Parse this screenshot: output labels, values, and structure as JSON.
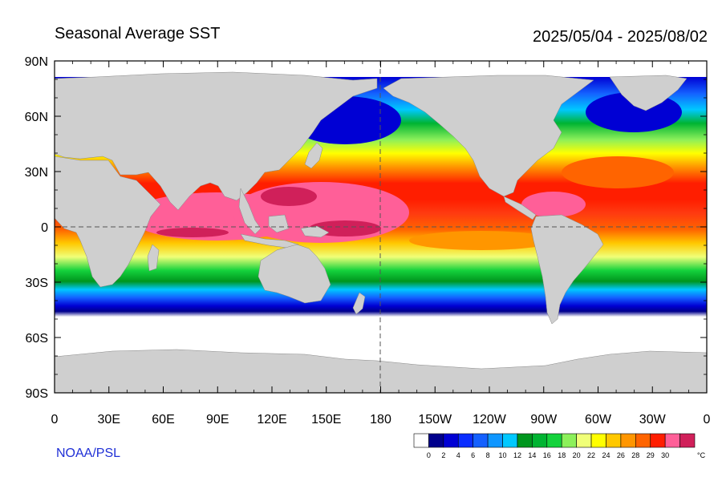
{
  "header": {
    "title": "Seasonal Average SST",
    "date_range": "2025/05/04 - 2025/08/02"
  },
  "credit": "NOAA/PSL",
  "map": {
    "projection": "cylindrical-equidistant",
    "lat_ticks": [
      "90N",
      "60N",
      "30N",
      "0",
      "30S",
      "60S",
      "90S"
    ],
    "lon_ticks": [
      "0",
      "30E",
      "60E",
      "90E",
      "120E",
      "150E",
      "180",
      "150W",
      "120W",
      "90W",
      "60W",
      "30W",
      "0"
    ],
    "land_color": "#cfcfcf",
    "reference_lines": [
      "equator-dashed",
      "dateline-dashed"
    ]
  },
  "legend": {
    "unit": "°C",
    "levels": [
      "0",
      "2",
      "4",
      "6",
      "8",
      "10",
      "12",
      "14",
      "16",
      "18",
      "20",
      "22",
      "24",
      "26",
      "28",
      "29",
      "30"
    ],
    "colors": [
      "#ffffff",
      "#00008c",
      "#0000d4",
      "#0a2dff",
      "#1460ff",
      "#0f96ff",
      "#00c8ff",
      "#00961e",
      "#00b432",
      "#14d23c",
      "#8cf05a",
      "#f0ff78",
      "#ffff00",
      "#ffc800",
      "#ff9600",
      "#ff6400",
      "#ff1e00",
      "#ff5f98",
      "#d0205a"
    ]
  }
}
